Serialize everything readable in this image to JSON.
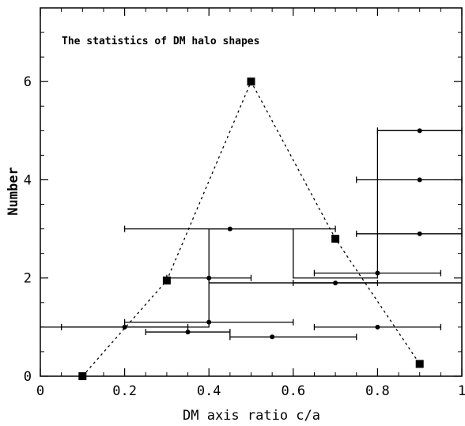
{
  "chart_data": {
    "type": "scatter",
    "title": "The statistics of DM halo shapes",
    "xlabel": "DM axis ratio c/a",
    "ylabel": "Number",
    "xlim": [
      0,
      1
    ],
    "ylim": [
      0,
      7.5
    ],
    "x_ticks": [
      0,
      0.2,
      0.4,
      0.6,
      0.8,
      1
    ],
    "x_tick_labels": [
      "0",
      "0.2",
      "0.4",
      "0.6",
      "0.8",
      "1"
    ],
    "y_ticks": [
      0,
      2,
      4,
      6
    ],
    "y_tick_labels": [
      "0",
      "2",
      "4",
      "6"
    ],
    "grid": false,
    "histogram_steps": [
      {
        "x": [
          0,
          0.4
        ],
        "y": 1
      },
      {
        "x": [
          0.4,
          0.6
        ],
        "y": 3
      },
      {
        "x": [
          0.6,
          0.8
        ],
        "y": 2
      },
      {
        "x": [
          0.8,
          1
        ],
        "y": 5
      }
    ],
    "histogram_extra_lines": [
      {
        "x": [
          0.4,
          1
        ],
        "y": 1.9
      }
    ],
    "points_with_errorbars": [
      {
        "x": 0.2,
        "y": 1.0,
        "xerr": [
          0.05,
          0.35
        ]
      },
      {
        "x": 0.35,
        "y": 0.9,
        "xerr": [
          0.25,
          0.45
        ]
      },
      {
        "x": 0.4,
        "y": 1.1,
        "xerr": [
          0.2,
          0.6
        ]
      },
      {
        "x": 0.4,
        "y": 2.0,
        "xerr": [
          0.3,
          0.5
        ]
      },
      {
        "x": 0.45,
        "y": 3.0,
        "xerr": [
          0.2,
          0.7
        ]
      },
      {
        "x": 0.55,
        "y": 0.8,
        "xerr": [
          0.45,
          0.75
        ]
      },
      {
        "x": 0.7,
        "y": 1.9,
        "xerr": [
          0.6,
          0.8
        ]
      },
      {
        "x": 0.8,
        "y": 2.1,
        "xerr": [
          0.65,
          0.95
        ]
      },
      {
        "x": 0.8,
        "y": 1.0,
        "xerr": [
          0.65,
          0.95
        ]
      },
      {
        "x": 0.9,
        "y": 2.9,
        "xerr": [
          0.75,
          1.0
        ]
      },
      {
        "x": 0.9,
        "y": 4.0,
        "xerr": [
          0.75,
          1.0
        ]
      },
      {
        "x": 0.9,
        "y": 5.0,
        "xerr": [
          0.8,
          1.0
        ]
      }
    ],
    "model_curve": {
      "style": "dotted",
      "marker": "square",
      "points": [
        {
          "x": 0.1,
          "y": 0.0
        },
        {
          "x": 0.3,
          "y": 1.95
        },
        {
          "x": 0.5,
          "y": 6.0
        },
        {
          "x": 0.7,
          "y": 2.8
        },
        {
          "x": 0.9,
          "y": 0.25
        }
      ]
    }
  }
}
